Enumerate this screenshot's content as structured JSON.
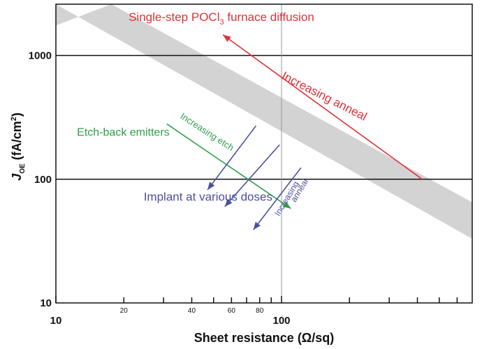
{
  "chart_data": {
    "type": "line",
    "x_scale": "log",
    "y_scale": "log",
    "xlim": [
      10,
      700
    ],
    "ylim": [
      10,
      2600
    ],
    "xlabel": "Sheet resistance (Ω/sq)",
    "ylabel": {
      "main": "J",
      "sub": "OE",
      "unit_pre": " (fA/cm",
      "unit_sup": "2",
      "unit_post": ")"
    },
    "x_major_ticks": [
      {
        "value": 10,
        "label": "10"
      },
      {
        "value": 100,
        "label": "100"
      }
    ],
    "x_minor_ticks": [
      {
        "value": 20,
        "label": "20"
      },
      {
        "value": 30,
        "label": ""
      },
      {
        "value": 40,
        "label": "40"
      },
      {
        "value": 50,
        "label": ""
      },
      {
        "value": 60,
        "label": "60"
      },
      {
        "value": 70,
        "label": ""
      },
      {
        "value": 80,
        "label": "80"
      },
      {
        "value": 90,
        "label": ""
      },
      {
        "value": 200,
        "label": ""
      },
      {
        "value": 300,
        "label": ""
      },
      {
        "value": 400,
        "label": ""
      },
      {
        "value": 500,
        "label": ""
      },
      {
        "value": 600,
        "label": ""
      }
    ],
    "y_major_ticks": [
      {
        "value": 10,
        "label": "10"
      },
      {
        "value": 100,
        "label": "100"
      },
      {
        "value": 1000,
        "label": "1000"
      }
    ],
    "gridlines": {
      "y": [
        100,
        1000
      ],
      "x": [
        100
      ]
    },
    "band": {
      "name": "Single-step POCl3 furnace diffusion",
      "color": "#d3d3d3",
      "upper": [
        {
          "x": 10,
          "y": 1750
        },
        {
          "x": 17.6,
          "y": 2600
        },
        {
          "x": 700,
          "y": 65
        }
      ],
      "lower": [
        {
          "x": 10,
          "y": 2600
        },
        {
          "x": 700,
          "y": 33
        }
      ]
    },
    "series": [
      {
        "color": "#e0303a",
        "x": [
          420,
          55
        ],
        "y": [
          100,
          1470
        ]
      },
      {
        "color": "#2e9e4c",
        "x": [
          31,
          110
        ],
        "y": [
          280,
          58
        ]
      },
      {
        "color": "#4a4f9e",
        "x": [
          77,
          47
        ],
        "y": [
          270,
          82
        ]
      },
      {
        "color": "#4a4f9e",
        "x": [
          98,
          56
        ],
        "y": [
          190,
          60
        ]
      },
      {
        "color": "#4a4f9e",
        "x": [
          122,
          75
        ],
        "y": [
          124,
          39
        ]
      }
    ],
    "annotations": [
      {
        "id": "red_title",
        "pre": "Single-step POCl",
        "sub": "3",
        "post": " furnace diffusion",
        "color": "#e0303a",
        "x": 21,
        "y": 1900,
        "size": 17,
        "rotate": 0,
        "anchor": "start"
      },
      {
        "id": "red_increasing",
        "text": "Increasing anneal",
        "color": "#e0303a",
        "x": 152,
        "y": 440,
        "size": 17,
        "rotate": 27,
        "anchor": "middle"
      },
      {
        "id": "green_emitters",
        "text": "Etch-back emitters",
        "color": "#2e9e4c",
        "x": 12.4,
        "y": 225,
        "size": 16,
        "rotate": 0,
        "anchor": "start"
      },
      {
        "id": "green_increasing",
        "text": "Increasing etch",
        "color": "#2e9e4c",
        "x": 46,
        "y": 230,
        "size": 13,
        "rotate": 33,
        "anchor": "middle"
      },
      {
        "id": "blue_implant",
        "text": "Implant at various doses",
        "color": "#4a4f9e",
        "x": 24.5,
        "y": 67,
        "size": 17,
        "rotate": 0,
        "anchor": "start"
      },
      {
        "id": "blue_increasing",
        "text": "Increasing",
        "color": "#4a4f9e",
        "x": 108,
        "y": 68,
        "size": 12,
        "rotate": -59,
        "anchor": "middle"
      },
      {
        "id": "blue_anneal",
        "text": "anneal",
        "color": "#4a4f9e",
        "x": 123,
        "y": 79,
        "size": 12,
        "rotate": -59,
        "anchor": "middle"
      }
    ]
  }
}
